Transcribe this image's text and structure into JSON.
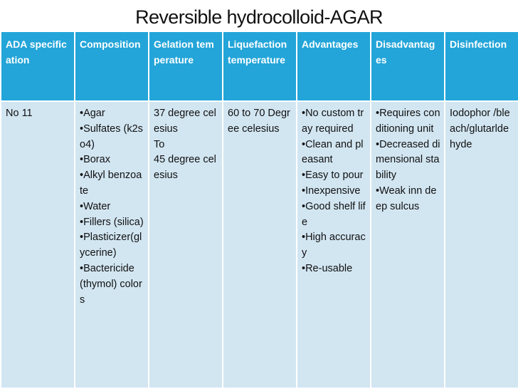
{
  "title": "Reversible hydrocolloid-AGAR",
  "colors": {
    "header_bg": "#23a5d9",
    "cell_bg": "#d2e6f2",
    "header_text": "#ffffff",
    "cell_text": "#111111"
  },
  "headers": [
    "ADA specification",
    "Composition",
    "Gelation temperature",
    "Liquefaction temperature",
    "Advantages",
    "Disadvantages",
    "Disinfection"
  ],
  "row": {
    "ada": [
      "No 11"
    ],
    "composition": [
      "•Agar",
      "•Sulfates (k2so4)",
      "•Borax",
      "•Alkyl benzoate",
      "•Water",
      "•Fillers (silica)",
      "•Plasticizer(glycerine)",
      "•Bactericide",
      "(thymol) colors"
    ],
    "gelation": [
      "37 degree celesius",
      "To",
      "45 degree celesius"
    ],
    "liquefaction": [
      "60 to 70 Degree celesius"
    ],
    "advantages": [
      "•No custom tray required",
      "•Clean and pleasant",
      "•Easy to pour",
      "•Inexpensive",
      "•Good shelf life",
      "•High accuracy",
      "•Re-usable"
    ],
    "disadvantages": [
      "•Requires conditioning unit",
      "•Decreased dimensional stability",
      "•Weak inn deep sulcus"
    ],
    "disinfection": [
      "Iodophor /bleach/glutarldehyde"
    ]
  }
}
